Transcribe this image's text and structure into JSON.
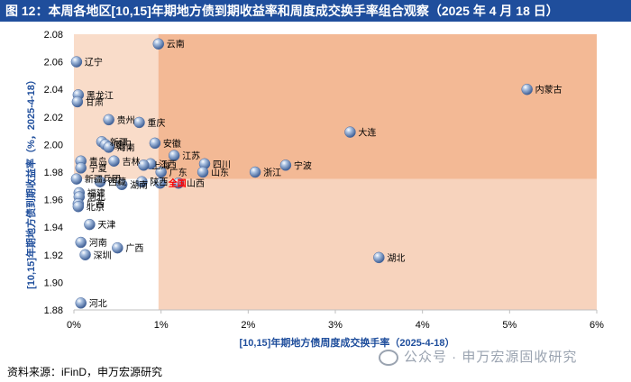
{
  "title": "图 12：本周各地区[10,15]年期地方债到期收益率和周度成交换手率组合观察（2025 年 4 月 18 日）",
  "source": "资料来源：iFinD，申万宏源研究",
  "watermark": "公众号 · 申万宏源固收研究",
  "colors": {
    "title_bg": "#1f4e9c",
    "axis_label": "#1f4e9c",
    "quadrant_light": "#fbe6d8",
    "quadrant_mid": "#f7d3bd",
    "quadrant_dark": "#f3b995",
    "point": "#6f8fbf",
    "highlight_label": "#ff0000"
  },
  "chart_data": {
    "type": "scatter",
    "xlabel": "[10,15]年期地方债周度成交换手率（2025-4-18）",
    "ylabel": "[10,15]年期地方债到期收益率（%，2025-4-18）",
    "xlim": [
      0,
      6
    ],
    "ylim": [
      1.88,
      2.08
    ],
    "xticks": [
      "0%",
      "1%",
      "2%",
      "3%",
      "4%",
      "5%",
      "6%"
    ],
    "yticks": [
      "1.88",
      "1.90",
      "1.92",
      "1.94",
      "1.96",
      "1.98",
      "2.00",
      "2.02",
      "2.04",
      "2.06",
      "2.08"
    ],
    "x_divider": 0.97,
    "y_divider": 1.975,
    "points": [
      {
        "label": "云南",
        "x": 0.97,
        "y": 2.073
      },
      {
        "label": "辽宁",
        "x": 0.03,
        "y": 2.06
      },
      {
        "label": "内蒙古",
        "x": 5.2,
        "y": 2.04
      },
      {
        "label": "黑龙江",
        "x": 0.05,
        "y": 2.036
      },
      {
        "label": "甘肃",
        "x": 0.04,
        "y": 2.031
      },
      {
        "label": "贵州",
        "x": 0.4,
        "y": 2.018
      },
      {
        "label": "重庆",
        "x": 0.75,
        "y": 2.016
      },
      {
        "label": "大连",
        "x": 3.17,
        "y": 2.009
      },
      {
        "label": "新疆",
        "x": 0.32,
        "y": 2.002
      },
      {
        "label": "厦门",
        "x": 0.36,
        "y": 2.0
      },
      {
        "label": "海南",
        "x": 0.4,
        "y": 1.998
      },
      {
        "label": "安徽",
        "x": 0.93,
        "y": 2.001
      },
      {
        "label": "江苏",
        "x": 1.15,
        "y": 1.992
      },
      {
        "label": "江西",
        "x": 0.88,
        "y": 1.986
      },
      {
        "label": "吉林",
        "x": 0.46,
        "y": 1.988
      },
      {
        "label": "上海",
        "x": 0.8,
        "y": 1.985
      },
      {
        "label": "宁波",
        "x": 2.43,
        "y": 1.985
      },
      {
        "label": "四川",
        "x": 1.5,
        "y": 1.986
      },
      {
        "label": "浙江",
        "x": 2.08,
        "y": 1.98
      },
      {
        "label": "广东",
        "x": 1.0,
        "y": 1.98
      },
      {
        "label": "青岛",
        "x": 0.08,
        "y": 1.988
      },
      {
        "label": "宁夏",
        "x": 0.08,
        "y": 1.983
      },
      {
        "label": "山东",
        "x": 1.48,
        "y": 1.98
      },
      {
        "label": "新疆兵团",
        "x": 0.03,
        "y": 1.975
      },
      {
        "label": "陕西",
        "x": 0.78,
        "y": 1.973
      },
      {
        "label": "湖南",
        "x": 0.55,
        "y": 1.971
      },
      {
        "label": "全国",
        "x": 0.99,
        "y": 1.972,
        "highlight": true
      },
      {
        "label": "山西",
        "x": 1.2,
        "y": 1.972
      },
      {
        "label": "西藏",
        "x": 0.3,
        "y": 1.973
      },
      {
        "label": "福建",
        "x": 0.06,
        "y": 1.965
      },
      {
        "label": "河北",
        "x": 0.06,
        "y": 1.962
      },
      {
        "label": "广西",
        "x": 0.05,
        "y": 1.957
      },
      {
        "label": "北京",
        "x": 0.05,
        "y": 1.955
      },
      {
        "label": "天津",
        "x": 0.18,
        "y": 1.942
      },
      {
        "label": "河南",
        "x": 0.08,
        "y": 1.929
      },
      {
        "label": "广西",
        "x": 0.5,
        "y": 1.925
      },
      {
        "label": "深圳",
        "x": 0.13,
        "y": 1.92
      },
      {
        "label": "湖北",
        "x": 3.5,
        "y": 1.918
      },
      {
        "label": "河北",
        "x": 0.08,
        "y": 1.885
      }
    ]
  }
}
